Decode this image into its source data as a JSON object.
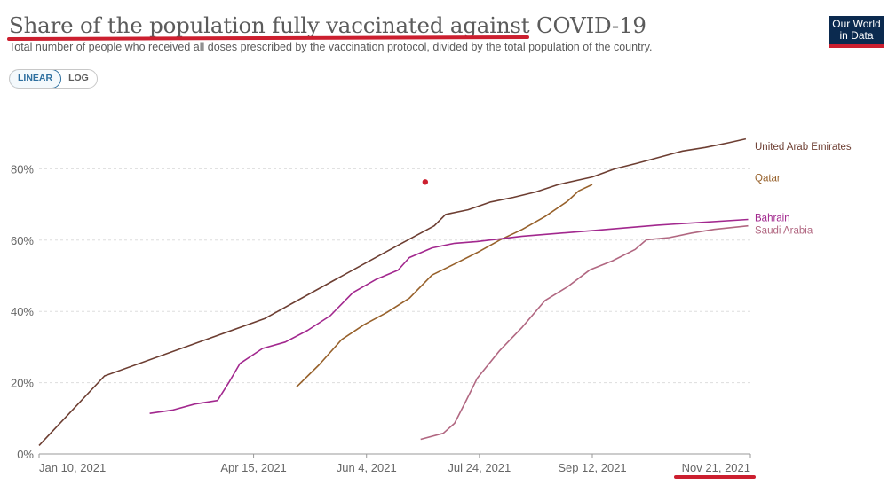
{
  "header": {
    "title": "Share of the population fully vaccinated against COVID-19",
    "subtitle": "Total number of people who received all doses prescribed by the vaccination protocol, divided by the total population of the country."
  },
  "controls": {
    "linear_label": "LINEAR",
    "log_label": "LOG",
    "selected": "LINEAR"
  },
  "logo": {
    "line1": "Our World",
    "line2": "in Data"
  },
  "colors": {
    "accent_red": "#cc1f2f",
    "logo_bg": "#0b2a4f",
    "selected_toggle": "#2d6f9f"
  },
  "chart_data": {
    "type": "line",
    "title": "Share of the population fully vaccinated against COVID-19",
    "subtitle": "Total number of people who received all doses prescribed by the vaccination protocol, divided by the total population of the country.",
    "ylim": [
      0,
      100
    ],
    "yticks": [
      0,
      20,
      40,
      60,
      80
    ],
    "ytick_labels": [
      "0%",
      "20%",
      "40%",
      "60%",
      "80%"
    ],
    "xlim": [
      "2021-01-10",
      "2021-11-21"
    ],
    "xticks": [
      "2021-01-10",
      "2021-04-15",
      "2021-06-04",
      "2021-07-24",
      "2021-09-12",
      "2021-11-21"
    ],
    "xtick_labels": [
      "Jan 10, 2021",
      "Apr 15, 2021",
      "Jun 4, 2021",
      "Jul 24, 2021",
      "Sep 12, 2021",
      "Nov 21, 2021"
    ],
    "grid": "horizontal-dashed",
    "legend": "line-end labels (right)",
    "series": [
      {
        "name": "United Arab Emirates",
        "color": "#6d3e32",
        "points": [
          [
            "2021-01-10",
            2.4
          ],
          [
            "2021-02-08",
            21.9
          ],
          [
            "2021-04-20",
            38.0
          ],
          [
            "2021-05-20",
            48.5
          ],
          [
            "2021-06-19",
            58.9
          ],
          [
            "2021-07-04",
            64.0
          ],
          [
            "2021-07-09",
            67.2
          ],
          [
            "2021-07-19",
            68.5
          ],
          [
            "2021-07-29",
            70.7
          ],
          [
            "2021-08-08",
            72.0
          ],
          [
            "2021-08-18",
            73.5
          ],
          [
            "2021-08-28",
            75.6
          ],
          [
            "2021-09-12",
            77.7
          ],
          [
            "2021-09-22",
            80.0
          ],
          [
            "2021-10-02",
            81.6
          ],
          [
            "2021-10-12",
            83.3
          ],
          [
            "2021-10-22",
            85.0
          ],
          [
            "2021-11-01",
            86.0
          ],
          [
            "2021-11-11",
            87.3
          ],
          [
            "2021-11-19",
            88.4
          ]
        ]
      },
      {
        "name": "Qatar",
        "color": "#97612b",
        "points": [
          [
            "2021-05-04",
            18.8
          ],
          [
            "2021-05-14",
            25.0
          ],
          [
            "2021-05-24",
            32.1
          ],
          [
            "2021-06-03",
            36.3
          ],
          [
            "2021-06-13",
            39.7
          ],
          [
            "2021-06-23",
            43.7
          ],
          [
            "2021-07-03",
            50.2
          ],
          [
            "2021-07-13",
            53.3
          ],
          [
            "2021-07-23",
            56.5
          ],
          [
            "2021-08-02",
            60.0
          ],
          [
            "2021-08-12",
            63.0
          ],
          [
            "2021-08-22",
            66.6
          ],
          [
            "2021-09-01",
            70.9
          ],
          [
            "2021-09-06",
            73.8
          ],
          [
            "2021-09-12",
            75.6
          ]
        ]
      },
      {
        "name": "Bahrain",
        "color": "#a2288e",
        "points": [
          [
            "2021-02-28",
            11.4
          ],
          [
            "2021-03-10",
            12.3
          ],
          [
            "2021-03-20",
            14.0
          ],
          [
            "2021-03-30",
            15.0
          ],
          [
            "2021-04-04",
            20.0
          ],
          [
            "2021-04-09",
            25.4
          ],
          [
            "2021-04-19",
            29.6
          ],
          [
            "2021-04-29",
            31.4
          ],
          [
            "2021-05-09",
            34.7
          ],
          [
            "2021-05-19",
            38.8
          ],
          [
            "2021-05-29",
            45.3
          ],
          [
            "2021-06-08",
            48.9
          ],
          [
            "2021-06-18",
            51.6
          ],
          [
            "2021-06-23",
            55.1
          ],
          [
            "2021-07-03",
            57.8
          ],
          [
            "2021-07-13",
            59.1
          ],
          [
            "2021-07-23",
            59.6
          ],
          [
            "2021-08-12",
            61.1
          ],
          [
            "2021-09-11",
            62.6
          ],
          [
            "2021-10-11",
            64.2
          ],
          [
            "2021-11-20",
            65.8
          ]
        ]
      },
      {
        "name": "Saudi Arabia",
        "color": "#b16781",
        "points": [
          [
            "2021-06-28",
            4.1
          ],
          [
            "2021-07-08",
            5.8
          ],
          [
            "2021-07-13",
            8.6
          ],
          [
            "2021-07-18",
            14.8
          ],
          [
            "2021-07-23",
            21.2
          ],
          [
            "2021-08-02",
            29.0
          ],
          [
            "2021-08-12",
            35.6
          ],
          [
            "2021-08-22",
            43.0
          ],
          [
            "2021-09-01",
            46.9
          ],
          [
            "2021-09-11",
            51.7
          ],
          [
            "2021-09-21",
            54.2
          ],
          [
            "2021-10-01",
            57.4
          ],
          [
            "2021-10-06",
            60.1
          ],
          [
            "2021-10-16",
            60.7
          ],
          [
            "2021-10-26",
            62.0
          ],
          [
            "2021-11-05",
            63.0
          ],
          [
            "2021-11-20",
            64.0
          ]
        ]
      }
    ],
    "annotations": [
      "red dot marker near Jul 1, 2021 at about 76%"
    ]
  }
}
